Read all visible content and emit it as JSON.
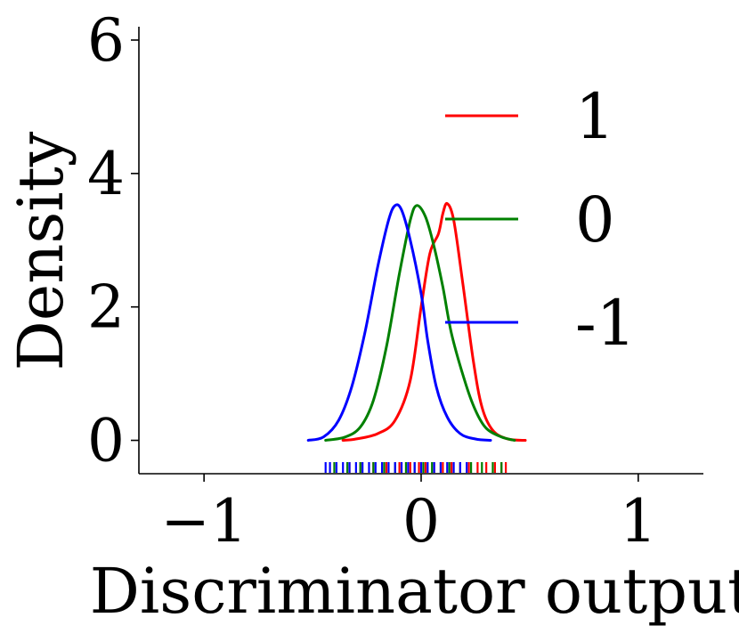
{
  "chart_data": {
    "type": "line",
    "xlabel": "Discriminator output",
    "ylabel": "Density",
    "xlim": [
      -1.3,
      1.3
    ],
    "ylim": [
      -0.5,
      6.2
    ],
    "x_ticks": [
      {
        "value": -1,
        "label": "−1"
      },
      {
        "value": 0,
        "label": "0"
      },
      {
        "value": 1,
        "label": "1"
      }
    ],
    "y_ticks": [
      {
        "value": 0,
        "label": "0"
      },
      {
        "value": 2,
        "label": "2"
      },
      {
        "value": 4,
        "label": "4"
      },
      {
        "value": 6,
        "label": "6"
      }
    ],
    "grid": false,
    "legend_position": "upper-right",
    "series": [
      {
        "name": "1",
        "color": "#ff0000",
        "x": [
          -0.36,
          -0.3,
          -0.2,
          -0.12,
          -0.05,
          0.0,
          0.04,
          0.08,
          0.1,
          0.12,
          0.15,
          0.19,
          0.24,
          0.28,
          0.33,
          0.4,
          0.48
        ],
        "y": [
          0.0,
          0.02,
          0.1,
          0.3,
          0.9,
          2.0,
          2.8,
          3.1,
          3.4,
          3.55,
          3.3,
          2.4,
          1.2,
          0.5,
          0.15,
          0.02,
          0.0
        ],
        "rug": [
          -0.33,
          -0.28,
          -0.22,
          -0.16,
          -0.1,
          -0.05,
          -0.01,
          0.02,
          0.06,
          0.1,
          0.14,
          0.18,
          0.22,
          0.26,
          0.3,
          0.34,
          0.37,
          0.39
        ]
      },
      {
        "name": "0",
        "color": "#008000",
        "x": [
          -0.44,
          -0.35,
          -0.28,
          -0.22,
          -0.16,
          -0.1,
          -0.05,
          -0.02,
          0.02,
          0.06,
          0.1,
          0.14,
          0.2,
          0.25,
          0.3,
          0.37,
          0.43
        ],
        "y": [
          0.0,
          0.05,
          0.2,
          0.6,
          1.4,
          2.5,
          3.3,
          3.52,
          3.35,
          2.9,
          2.3,
          1.6,
          0.9,
          0.45,
          0.18,
          0.05,
          0.0
        ],
        "rug": [
          -0.4,
          -0.34,
          -0.28,
          -0.22,
          -0.17,
          -0.12,
          -0.07,
          -0.03,
          0.01,
          0.05,
          0.09,
          0.13,
          0.18,
          0.23,
          0.28,
          0.33,
          0.37
        ]
      },
      {
        "name": "-1",
        "color": "#0000ff",
        "x": [
          -0.52,
          -0.45,
          -0.38,
          -0.32,
          -0.26,
          -0.2,
          -0.15,
          -0.12,
          -0.09,
          -0.05,
          0.0,
          0.03,
          0.07,
          0.12,
          0.18,
          0.25,
          0.32
        ],
        "y": [
          0.0,
          0.05,
          0.3,
          0.8,
          1.6,
          2.6,
          3.3,
          3.52,
          3.45,
          3.0,
          2.2,
          1.5,
          0.8,
          0.35,
          0.1,
          0.02,
          0.0
        ],
        "rug": [
          -0.44,
          -0.42,
          -0.39,
          -0.36,
          -0.33,
          -0.3,
          -0.27,
          -0.24,
          -0.21,
          -0.18,
          -0.15,
          -0.12,
          -0.09,
          -0.06,
          -0.03,
          0.0,
          0.03,
          0.06,
          0.09,
          0.12,
          0.15,
          0.18,
          0.21
        ]
      }
    ]
  }
}
